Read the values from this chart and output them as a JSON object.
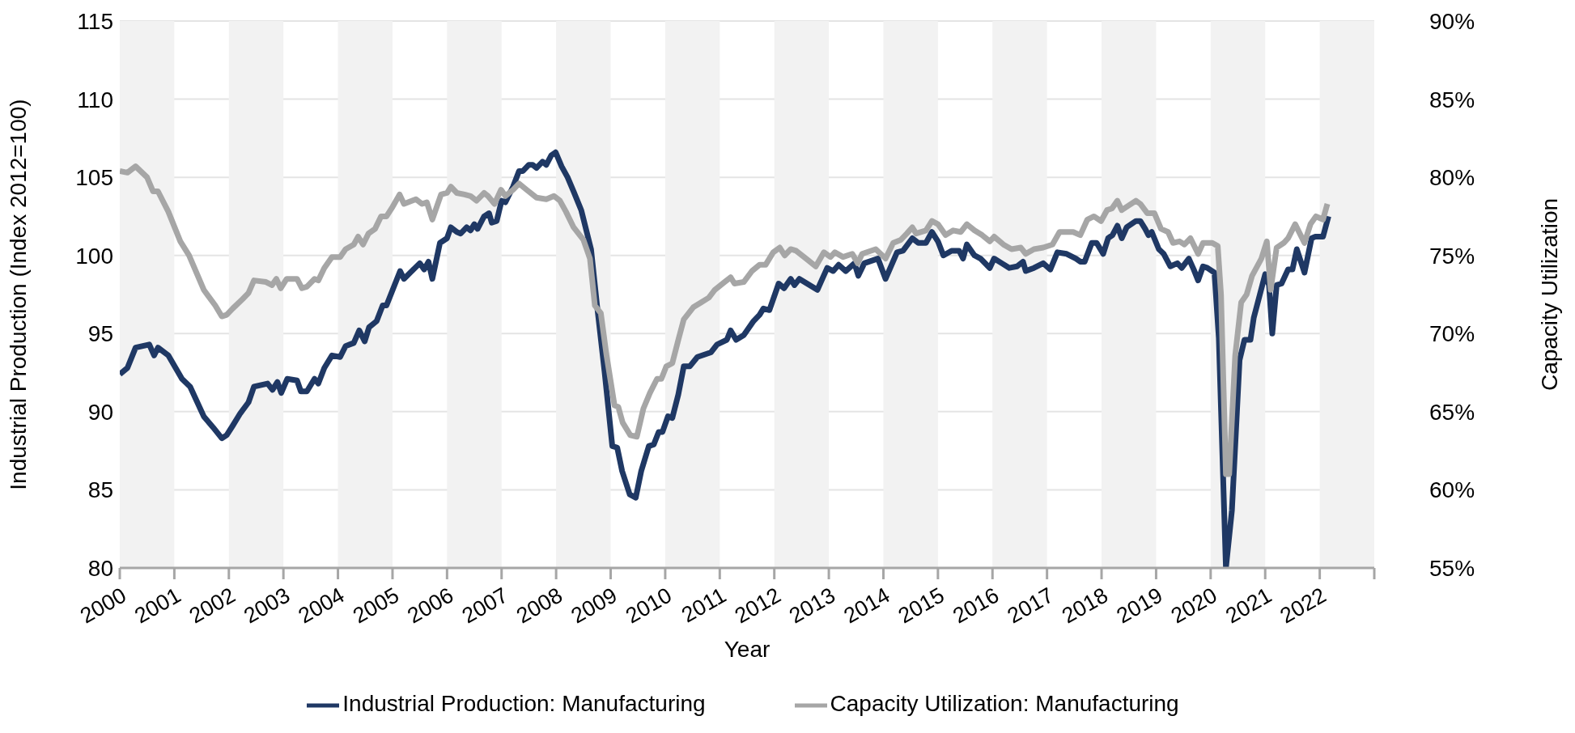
{
  "chart_data": {
    "type": "line",
    "xlabel": "Year",
    "ylabel": "Industrial Production (Index 2012=100)",
    "y2label": "Capacity Utilization",
    "xlim": [
      2000,
      2023
    ],
    "xticks": [
      2000,
      2001,
      2002,
      2003,
      2004,
      2005,
      2006,
      2007,
      2008,
      2009,
      2010,
      2011,
      2012,
      2013,
      2014,
      2015,
      2016,
      2017,
      2018,
      2019,
      2020,
      2021,
      2022,
      {
        "value": 2023,
        "label": null
      }
    ],
    "ylim": [
      80,
      115
    ],
    "yticks": [
      80,
      85,
      90,
      95,
      100,
      105,
      110,
      115
    ],
    "y2lim": [
      55,
      90
    ],
    "y2ticks": [
      {
        "value": 55,
        "label": "55%"
      },
      {
        "value": 60,
        "label": "60%"
      },
      {
        "value": 65,
        "label": "65%"
      },
      {
        "value": 70,
        "label": "70%"
      },
      {
        "value": 75,
        "label": "75%"
      },
      {
        "value": 80,
        "label": "80%"
      },
      {
        "value": 85,
        "label": "85%"
      },
      {
        "value": 90,
        "label": "90%"
      }
    ],
    "grid": "y",
    "legend": "bottom",
    "bands": [
      {
        "axis": "x",
        "from": 2000,
        "to": 2001,
        "color": "#f2f2f2"
      },
      {
        "axis": "x",
        "from": 2002,
        "to": 2003,
        "color": "#f2f2f2"
      },
      {
        "axis": "x",
        "from": 2004,
        "to": 2005,
        "color": "#f2f2f2"
      },
      {
        "axis": "x",
        "from": 2006,
        "to": 2007,
        "color": "#f2f2f2"
      },
      {
        "axis": "x",
        "from": 2008,
        "to": 2009,
        "color": "#f2f2f2"
      },
      {
        "axis": "x",
        "from": 2010,
        "to": 2011,
        "color": "#f2f2f2"
      },
      {
        "axis": "x",
        "from": 2012,
        "to": 2013,
        "color": "#f2f2f2"
      },
      {
        "axis": "x",
        "from": 2014,
        "to": 2015,
        "color": "#f2f2f2"
      },
      {
        "axis": "x",
        "from": 2016,
        "to": 2017,
        "color": "#f2f2f2"
      },
      {
        "axis": "x",
        "from": 2018,
        "to": 2019,
        "color": "#f2f2f2"
      },
      {
        "axis": "x",
        "from": 2020,
        "to": 2021,
        "color": "#f2f2f2"
      },
      {
        "axis": "x",
        "from": 2022,
        "to": 2023,
        "color": "#f2f2f2"
      }
    ],
    "series": [
      {
        "name": "Industrial Production: Manufacturing",
        "color": "#1f3864",
        "x": [
          2000.0,
          2000.14,
          2000.29,
          2000.54,
          2000.63,
          2000.7,
          2000.89,
          2001.14,
          2001.29,
          2001.54,
          2001.71,
          2001.87,
          2001.96,
          2002.07,
          2002.21,
          2002.36,
          2002.46,
          2002.71,
          2002.8,
          2002.89,
          2002.96,
          2003.07,
          2003.25,
          2003.32,
          2003.43,
          2003.57,
          2003.64,
          2003.75,
          2003.89,
          2004.04,
          2004.14,
          2004.29,
          2004.39,
          2004.49,
          2004.57,
          2004.71,
          2004.82,
          2004.89,
          2005.14,
          2005.21,
          2005.5,
          2005.58,
          2005.66,
          2005.73,
          2005.87,
          2006.0,
          2006.07,
          2006.18,
          2006.25,
          2006.36,
          2006.43,
          2006.5,
          2006.56,
          2006.68,
          2006.77,
          2006.82,
          2006.91,
          2007.0,
          2007.07,
          2007.21,
          2007.32,
          2007.39,
          2007.5,
          2007.57,
          2007.64,
          2007.75,
          2007.82,
          2007.91,
          2007.99,
          2008.1,
          2008.21,
          2008.32,
          2008.46,
          2008.64,
          2008.75,
          2008.89,
          2009.03,
          2009.12,
          2009.21,
          2009.35,
          2009.46,
          2009.56,
          2009.7,
          2009.79,
          2009.88,
          2009.95,
          2010.05,
          2010.13,
          2010.24,
          2010.34,
          2010.45,
          2010.59,
          2010.84,
          2010.95,
          2011.13,
          2011.2,
          2011.3,
          2011.44,
          2011.62,
          2011.73,
          2011.8,
          2011.91,
          2012.08,
          2012.18,
          2012.3,
          2012.37,
          2012.46,
          2012.79,
          2012.97,
          2013.08,
          2013.18,
          2013.31,
          2013.47,
          2013.54,
          2013.65,
          2013.9,
          2014.04,
          2014.25,
          2014.36,
          2014.53,
          2014.64,
          2014.78,
          2014.89,
          2015.0,
          2015.1,
          2015.25,
          2015.39,
          2015.46,
          2015.53,
          2015.67,
          2015.78,
          2015.95,
          2016.03,
          2016.17,
          2016.31,
          2016.45,
          2016.56,
          2016.61,
          2016.76,
          2016.93,
          2017.06,
          2017.19,
          2017.36,
          2017.53,
          2017.61,
          2017.69,
          2017.82,
          2017.91,
          2018.03,
          2018.12,
          2018.2,
          2018.29,
          2018.37,
          2018.46,
          2018.63,
          2018.71,
          2018.8,
          2018.86,
          2018.92,
          2019.05,
          2019.14,
          2019.26,
          2019.39,
          2019.47,
          2019.6,
          2019.69,
          2019.77,
          2019.86,
          2019.94,
          2020.07,
          2020.15,
          2020.28,
          2020.39,
          2020.53,
          2020.62,
          2020.73,
          2020.79,
          2021.0,
          2021.07,
          2021.13,
          2021.21,
          2021.3,
          2021.42,
          2021.5,
          2021.58,
          2021.72,
          2021.85,
          2021.92,
          2022.06,
          2022.16
        ],
        "values": [
          92.4,
          92.8,
          94.1,
          94.3,
          93.6,
          94.1,
          93.6,
          92.1,
          91.6,
          89.7,
          89.0,
          88.3,
          88.5,
          89.1,
          89.9,
          90.6,
          91.6,
          91.8,
          91.4,
          91.9,
          91.2,
          92.1,
          92.0,
          91.3,
          91.3,
          92.1,
          91.8,
          92.8,
          93.6,
          93.5,
          94.2,
          94.4,
          95.2,
          94.5,
          95.4,
          95.8,
          96.8,
          96.8,
          99.0,
          98.5,
          99.5,
          99.1,
          99.6,
          98.5,
          100.8,
          101.1,
          101.8,
          101.5,
          101.4,
          101.8,
          101.6,
          102.0,
          101.7,
          102.5,
          102.7,
          102.1,
          102.2,
          103.5,
          103.4,
          104.4,
          105.4,
          105.4,
          105.8,
          105.8,
          105.6,
          106.0,
          105.8,
          106.4,
          106.6,
          105.7,
          105.0,
          104.1,
          102.9,
          100.4,
          96.8,
          92.5,
          87.8,
          87.7,
          86.2,
          84.7,
          84.5,
          86.2,
          87.8,
          87.9,
          88.7,
          88.7,
          89.7,
          89.6,
          91.1,
          92.9,
          92.9,
          93.5,
          93.8,
          94.3,
          94.6,
          95.2,
          94.6,
          94.9,
          95.8,
          96.2,
          96.6,
          96.5,
          98.2,
          97.9,
          98.5,
          98.1,
          98.5,
          97.8,
          99.2,
          99.0,
          99.4,
          99.0,
          99.5,
          98.7,
          99.5,
          99.8,
          98.5,
          100.2,
          100.3,
          101.1,
          100.8,
          100.8,
          101.5,
          100.9,
          100.0,
          100.3,
          100.3,
          99.8,
          100.7,
          100.0,
          99.8,
          99.2,
          99.8,
          99.5,
          99.2,
          99.3,
          99.6,
          99.0,
          99.2,
          99.5,
          99.1,
          100.2,
          100.1,
          99.8,
          99.6,
          99.6,
          100.8,
          100.8,
          100.1,
          101.1,
          101.3,
          101.9,
          101.1,
          101.8,
          102.2,
          102.2,
          101.7,
          101.3,
          101.5,
          100.4,
          100.1,
          99.3,
          99.5,
          99.2,
          99.8,
          99.1,
          98.4,
          99.3,
          99.2,
          98.9,
          94.7,
          80,
          83.7,
          93.3,
          94.6,
          94.6,
          96.0,
          98.8,
          98.1,
          95.0,
          98.1,
          98.2,
          99.1,
          99.1,
          100.4,
          98.9,
          101.1,
          101.2,
          101.2,
          102.5
        ]
      },
      {
        "name": "Capacity Utilization: Manufacturing",
        "color": "#a6a6a6",
        "axis": "y2",
        "x": [
          2000.0,
          2000.14,
          2000.29,
          2000.5,
          2000.61,
          2000.7,
          2000.89,
          2001.11,
          2001.27,
          2001.54,
          2001.75,
          2001.87,
          2001.96,
          2002.07,
          2002.25,
          2002.36,
          2002.46,
          2002.68,
          2002.79,
          2002.87,
          2002.95,
          2003.06,
          2003.25,
          2003.34,
          2003.43,
          2003.57,
          2003.64,
          2003.75,
          2003.89,
          2004.04,
          2004.14,
          2004.29,
          2004.37,
          2004.46,
          2004.56,
          2004.68,
          2004.79,
          2004.89,
          2005.0,
          2005.13,
          2005.21,
          2005.43,
          2005.54,
          2005.63,
          2005.73,
          2005.89,
          2006.0,
          2006.07,
          2006.18,
          2006.32,
          2006.43,
          2006.54,
          2006.68,
          2006.75,
          2006.87,
          2006.99,
          2007.07,
          2007.21,
          2007.32,
          2007.46,
          2007.64,
          2007.82,
          2007.96,
          2008.07,
          2008.18,
          2008.32,
          2008.5,
          2008.62,
          2008.71,
          2008.82,
          2008.92,
          2009.07,
          2009.14,
          2009.22,
          2009.36,
          2009.48,
          2009.6,
          2009.72,
          2009.85,
          2009.93,
          2010.02,
          2010.13,
          2010.24,
          2010.34,
          2010.52,
          2010.66,
          2010.8,
          2010.91,
          2011.09,
          2011.2,
          2011.27,
          2011.44,
          2011.59,
          2011.73,
          2011.84,
          2011.98,
          2012.1,
          2012.19,
          2012.3,
          2012.4,
          2012.58,
          2012.76,
          2012.91,
          2013.03,
          2013.11,
          2013.26,
          2013.43,
          2013.53,
          2013.61,
          2013.86,
          2014.04,
          2014.18,
          2014.32,
          2014.43,
          2014.53,
          2014.6,
          2014.78,
          2014.89,
          2015.0,
          2015.14,
          2015.28,
          2015.42,
          2015.53,
          2015.67,
          2015.81,
          2015.95,
          2016.03,
          2016.2,
          2016.35,
          2016.52,
          2016.61,
          2016.76,
          2016.93,
          2017.1,
          2017.23,
          2017.48,
          2017.61,
          2017.74,
          2017.86,
          2017.99,
          2018.1,
          2018.19,
          2018.29,
          2018.37,
          2018.5,
          2018.63,
          2018.71,
          2018.84,
          2018.97,
          2019.09,
          2019.22,
          2019.31,
          2019.43,
          2019.52,
          2019.63,
          2019.77,
          2019.86,
          2020.03,
          2020.13,
          2020.19,
          2020.28,
          2020.34,
          2020.45,
          2020.56,
          2020.66,
          2020.76,
          2020.93,
          2021.03,
          2021.1,
          2021.21,
          2021.34,
          2021.42,
          2021.55,
          2021.72,
          2021.83,
          2021.93,
          2022.06,
          2022.14
        ],
        "values": [
          80.4,
          80.3,
          80.7,
          80.0,
          79.1,
          79.1,
          77.8,
          75.9,
          75.0,
          72.8,
          71.8,
          71.1,
          71.2,
          71.6,
          72.2,
          72.6,
          73.4,
          73.3,
          73.1,
          73.5,
          72.9,
          73.5,
          73.5,
          72.9,
          73.0,
          73.5,
          73.4,
          74.2,
          74.9,
          74.9,
          75.4,
          75.7,
          76.2,
          75.7,
          76.4,
          76.7,
          77.5,
          77.5,
          78.1,
          78.9,
          78.3,
          78.6,
          78.3,
          78.4,
          77.3,
          78.9,
          79.0,
          79.4,
          79.0,
          78.9,
          78.8,
          78.5,
          79.0,
          78.8,
          78.3,
          79.2,
          78.8,
          79.2,
          79.6,
          79.2,
          78.7,
          78.6,
          78.8,
          78.5,
          77.8,
          76.8,
          76.0,
          74.8,
          71.8,
          71.3,
          68.7,
          65.4,
          65.3,
          64.3,
          63.5,
          63.4,
          65.2,
          66.2,
          67.1,
          67.1,
          67.9,
          68.1,
          69.6,
          70.9,
          71.7,
          72.0,
          72.3,
          72.8,
          73.3,
          73.6,
          73.2,
          73.3,
          74.0,
          74.4,
          74.4,
          75.2,
          75.5,
          75.0,
          75.4,
          75.3,
          74.8,
          74.3,
          75.2,
          74.9,
          75.2,
          74.9,
          75.1,
          74.5,
          75.1,
          75.4,
          74.8,
          75.8,
          76.0,
          76.4,
          76.8,
          76.4,
          76.6,
          77.2,
          77.0,
          76.3,
          76.6,
          76.5,
          77.0,
          76.6,
          76.3,
          75.9,
          76.2,
          75.7,
          75.4,
          75.5,
          75.1,
          75.4,
          75.5,
          75.7,
          76.5,
          76.5,
          76.3,
          77.3,
          77.5,
          77.2,
          77.9,
          78.0,
          78.5,
          77.9,
          78.2,
          78.5,
          78.3,
          77.7,
          77.7,
          76.7,
          76.5,
          75.8,
          75.9,
          75.7,
          76.1,
          75.1,
          75.8,
          75.8,
          75.6,
          72.5,
          61.0,
          61.0,
          68.6,
          72.0,
          72.5,
          73.7,
          74.8,
          75.9,
          72.8,
          75.5,
          75.8,
          76.1,
          77.0,
          75.8,
          77.0,
          77.5,
          77.3,
          78.3
        ]
      }
    ]
  }
}
